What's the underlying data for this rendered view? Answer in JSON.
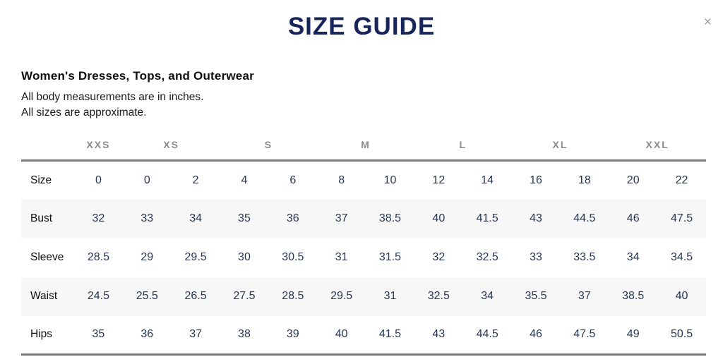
{
  "modal": {
    "title": "SIZE GUIDE",
    "close_label": "×"
  },
  "section": {
    "heading": "Women's Dresses, Tops, and Outerwear",
    "note_line1": "All body measurements are in inches.",
    "note_line2": "All sizes are approximate."
  },
  "colors": {
    "title_navy": "#16245a",
    "value_navy": "#263654",
    "group_header_gray": "#8b8b8b",
    "border_gray": "#7b7b7b",
    "stripe_bg": "#f7f7f7",
    "close_gray": "#9b9b9b"
  },
  "chart_data": {
    "type": "table",
    "size_groups": [
      {
        "label": "XXS",
        "span": 1
      },
      {
        "label": "XS",
        "span": 2
      },
      {
        "label": "S",
        "span": 2
      },
      {
        "label": "M",
        "span": 2
      },
      {
        "label": "L",
        "span": 2
      },
      {
        "label": "XL",
        "span": 2
      },
      {
        "label": "XXL",
        "span": 2
      }
    ],
    "measurement_rows": [
      {
        "label": "Size",
        "values": [
          "0",
          "0",
          "2",
          "4",
          "6",
          "8",
          "10",
          "12",
          "14",
          "16",
          "18",
          "20",
          "22"
        ]
      },
      {
        "label": "Bust",
        "values": [
          "32",
          "33",
          "34",
          "35",
          "36",
          "37",
          "38.5",
          "40",
          "41.5",
          "43",
          "44.5",
          "46",
          "47.5"
        ]
      },
      {
        "label": "Sleeve",
        "values": [
          "28.5",
          "29",
          "29.5",
          "30",
          "30.5",
          "31",
          "31.5",
          "32",
          "32.5",
          "33",
          "33.5",
          "34",
          "34.5"
        ]
      },
      {
        "label": "Waist",
        "values": [
          "24.5",
          "25.5",
          "26.5",
          "27.5",
          "28.5",
          "29.5",
          "31",
          "32.5",
          "34",
          "35.5",
          "37",
          "38.5",
          "40"
        ]
      },
      {
        "label": "Hips",
        "values": [
          "35",
          "36",
          "37",
          "38",
          "39",
          "40",
          "41.5",
          "43",
          "44.5",
          "46",
          "47.5",
          "49",
          "50.5"
        ]
      }
    ]
  }
}
